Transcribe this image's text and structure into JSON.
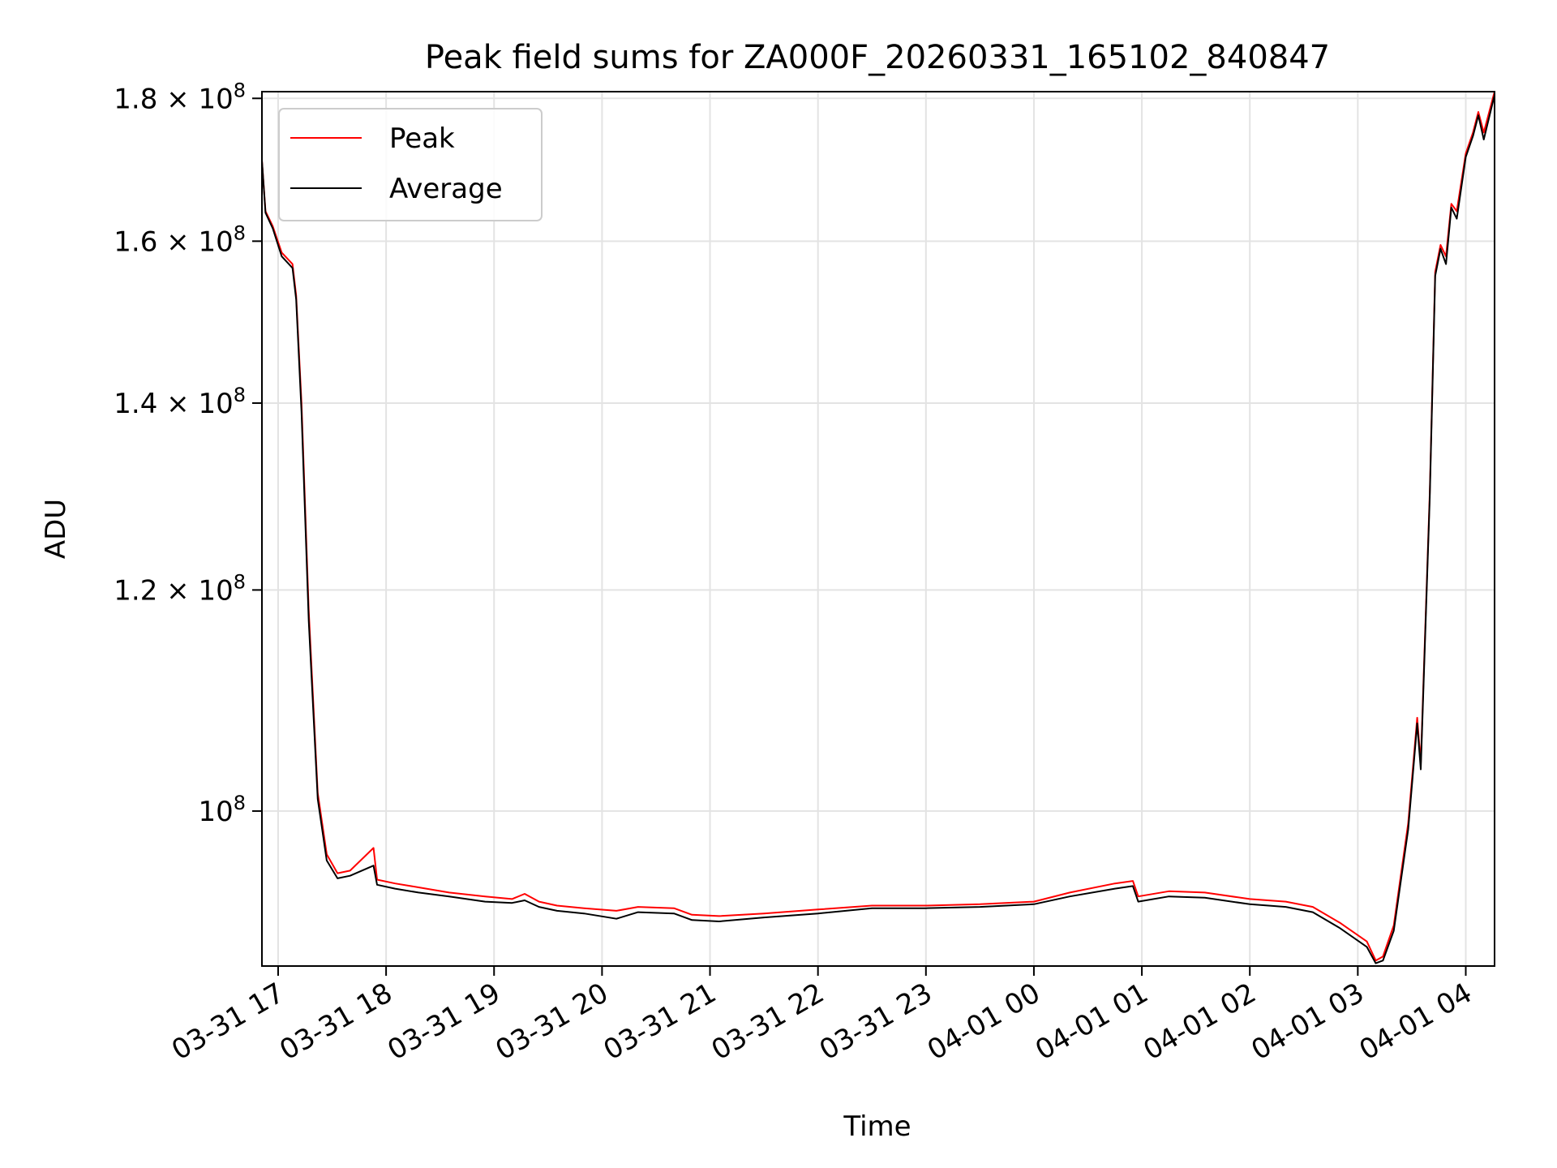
{
  "chart_data": {
    "type": "line",
    "title": "Peak field sums for ZA000F_20260331_165102_840847",
    "xlabel": "Time",
    "ylabel": "ADU",
    "y_scale": "log",
    "xlim": [
      "2026-03-31 16:51",
      "2026-04-01 04:16"
    ],
    "ylim": [
      88000000,
      181000000
    ],
    "x_ticks": [
      "03-31 17",
      "03-31 18",
      "03-31 19",
      "03-31 20",
      "03-31 21",
      "03-31 22",
      "03-31 23",
      "04-01 00",
      "04-01 01",
      "04-01 02",
      "04-01 03",
      "04-01 04"
    ],
    "x_tick_rotation_deg": 30,
    "y_ticks": [
      {
        "value": 100000000,
        "mantissa": "",
        "exponent": "8",
        "label": "10^8"
      },
      {
        "value": 120000000,
        "mantissa": "1.2",
        "exponent": "8",
        "label": "1.2×10^8"
      },
      {
        "value": 140000000,
        "mantissa": "1.4",
        "exponent": "8",
        "label": "1.4×10^8"
      },
      {
        "value": 160000000,
        "mantissa": "1.6",
        "exponent": "8",
        "label": "1.6×10^8"
      },
      {
        "value": 180000000,
        "mantissa": "1.8",
        "exponent": "8",
        "label": "1.8×10^8"
      }
    ],
    "grid": true,
    "legend_position": "top-left",
    "series": [
      {
        "name": "Peak",
        "color": "#ff0000",
        "points": [
          [
            "2026-03-31 16:51",
            171000000
          ],
          [
            "2026-03-31 16:53",
            164000000
          ],
          [
            "2026-03-31 16:57",
            162000000
          ],
          [
            "2026-03-31 17:02",
            158500000
          ],
          [
            "2026-03-31 17:08",
            157000000
          ],
          [
            "2026-03-31 17:10",
            153000000
          ],
          [
            "2026-03-31 17:13",
            140000000
          ],
          [
            "2026-03-31 17:17",
            118000000
          ],
          [
            "2026-03-31 17:22",
            101500000
          ],
          [
            "2026-03-31 17:27",
            96500000
          ],
          [
            "2026-03-31 17:33",
            95000000
          ],
          [
            "2026-03-31 17:40",
            95200000
          ],
          [
            "2026-03-31 17:53",
            97000000
          ],
          [
            "2026-03-31 17:55",
            94500000
          ],
          [
            "2026-03-31 18:05",
            94200000
          ],
          [
            "2026-03-31 18:18",
            93900000
          ],
          [
            "2026-03-31 18:35",
            93500000
          ],
          [
            "2026-03-31 18:55",
            93200000
          ],
          [
            "2026-03-31 19:10",
            93000000
          ],
          [
            "2026-03-31 19:17",
            93400000
          ],
          [
            "2026-03-31 19:25",
            92800000
          ],
          [
            "2026-03-31 19:35",
            92500000
          ],
          [
            "2026-03-31 19:50",
            92300000
          ],
          [
            "2026-03-31 20:08",
            92100000
          ],
          [
            "2026-03-31 20:20",
            92400000
          ],
          [
            "2026-03-31 20:40",
            92300000
          ],
          [
            "2026-03-31 20:50",
            91800000
          ],
          [
            "2026-03-31 21:05",
            91700000
          ],
          [
            "2026-03-31 21:30",
            91900000
          ],
          [
            "2026-03-31 22:00",
            92200000
          ],
          [
            "2026-03-31 22:30",
            92500000
          ],
          [
            "2026-03-31 23:00",
            92500000
          ],
          [
            "2026-03-31 23:30",
            92600000
          ],
          [
            "2026-04-01 00:00",
            92800000
          ],
          [
            "2026-04-01 00:20",
            93500000
          ],
          [
            "2026-04-01 00:45",
            94200000
          ],
          [
            "2026-04-01 00:55",
            94400000
          ],
          [
            "2026-04-01 00:58",
            93200000
          ],
          [
            "2026-04-01 01:15",
            93600000
          ],
          [
            "2026-04-01 01:35",
            93500000
          ],
          [
            "2026-04-01 02:00",
            93000000
          ],
          [
            "2026-04-01 02:20",
            92800000
          ],
          [
            "2026-04-01 02:35",
            92400000
          ],
          [
            "2026-04-01 02:50",
            91200000
          ],
          [
            "2026-04-01 03:05",
            89800000
          ],
          [
            "2026-04-01 03:10",
            88400000
          ],
          [
            "2026-04-01 03:14",
            88700000
          ],
          [
            "2026-04-01 03:20",
            91000000
          ],
          [
            "2026-04-01 03:28",
            99000000
          ],
          [
            "2026-04-01 03:33",
            108000000
          ],
          [
            "2026-04-01 03:35",
            104000000
          ],
          [
            "2026-04-01 03:40",
            130000000
          ],
          [
            "2026-04-01 03:43",
            156000000
          ],
          [
            "2026-04-01 03:46",
            159500000
          ],
          [
            "2026-04-01 03:49",
            158000000
          ],
          [
            "2026-04-01 03:52",
            165000000
          ],
          [
            "2026-04-01 03:55",
            164000000
          ],
          [
            "2026-04-01 04:00",
            172000000
          ],
          [
            "2026-04-01 04:04",
            175000000
          ],
          [
            "2026-04-01 04:07",
            178000000
          ],
          [
            "2026-04-01 04:10",
            175000000
          ],
          [
            "2026-04-01 04:16",
            181000000
          ]
        ]
      },
      {
        "name": "Average",
        "color": "#000000",
        "points": [
          [
            "2026-03-31 16:51",
            171000000
          ],
          [
            "2026-03-31 16:53",
            163800000
          ],
          [
            "2026-03-31 16:57",
            161700000
          ],
          [
            "2026-03-31 17:02",
            158000000
          ],
          [
            "2026-03-31 17:08",
            156500000
          ],
          [
            "2026-03-31 17:10",
            152500000
          ],
          [
            "2026-03-31 17:13",
            139000000
          ],
          [
            "2026-03-31 17:17",
            117000000
          ],
          [
            "2026-03-31 17:22",
            101000000
          ],
          [
            "2026-03-31 17:27",
            96000000
          ],
          [
            "2026-03-31 17:33",
            94600000
          ],
          [
            "2026-03-31 17:40",
            94800000
          ],
          [
            "2026-03-31 17:53",
            95600000
          ],
          [
            "2026-03-31 17:55",
            94100000
          ],
          [
            "2026-03-31 18:05",
            93800000
          ],
          [
            "2026-03-31 18:18",
            93500000
          ],
          [
            "2026-03-31 18:35",
            93200000
          ],
          [
            "2026-03-31 18:55",
            92800000
          ],
          [
            "2026-03-31 19:10",
            92700000
          ],
          [
            "2026-03-31 19:17",
            92900000
          ],
          [
            "2026-03-31 19:25",
            92400000
          ],
          [
            "2026-03-31 19:35",
            92100000
          ],
          [
            "2026-03-31 19:50",
            91900000
          ],
          [
            "2026-03-31 20:08",
            91500000
          ],
          [
            "2026-03-31 20:20",
            92000000
          ],
          [
            "2026-03-31 20:40",
            91900000
          ],
          [
            "2026-03-31 20:50",
            91400000
          ],
          [
            "2026-03-31 21:05",
            91300000
          ],
          [
            "2026-03-31 21:30",
            91600000
          ],
          [
            "2026-03-31 22:00",
            91900000
          ],
          [
            "2026-03-31 22:30",
            92300000
          ],
          [
            "2026-03-31 23:00",
            92300000
          ],
          [
            "2026-03-31 23:30",
            92400000
          ],
          [
            "2026-04-01 00:00",
            92600000
          ],
          [
            "2026-04-01 00:20",
            93200000
          ],
          [
            "2026-04-01 00:45",
            93800000
          ],
          [
            "2026-04-01 00:55",
            94000000
          ],
          [
            "2026-04-01 00:58",
            92800000
          ],
          [
            "2026-04-01 01:15",
            93200000
          ],
          [
            "2026-04-01 01:35",
            93100000
          ],
          [
            "2026-04-01 02:00",
            92600000
          ],
          [
            "2026-04-01 02:20",
            92400000
          ],
          [
            "2026-04-01 02:35",
            92000000
          ],
          [
            "2026-04-01 02:50",
            90800000
          ],
          [
            "2026-04-01 03:05",
            89400000
          ],
          [
            "2026-04-01 03:10",
            88200000
          ],
          [
            "2026-04-01 03:14",
            88400000
          ],
          [
            "2026-04-01 03:20",
            90600000
          ],
          [
            "2026-04-01 03:28",
            98500000
          ],
          [
            "2026-04-01 03:33",
            107500000
          ],
          [
            "2026-04-01 03:35",
            103500000
          ],
          [
            "2026-04-01 03:40",
            129500000
          ],
          [
            "2026-04-01 03:43",
            155500000
          ],
          [
            "2026-04-01 03:46",
            159000000
          ],
          [
            "2026-04-01 03:49",
            157000000
          ],
          [
            "2026-04-01 03:52",
            164500000
          ],
          [
            "2026-04-01 03:55",
            163000000
          ],
          [
            "2026-04-01 04:00",
            171500000
          ],
          [
            "2026-04-01 04:04",
            174500000
          ],
          [
            "2026-04-01 04:07",
            177500000
          ],
          [
            "2026-04-01 04:10",
            174000000
          ],
          [
            "2026-04-01 04:16",
            180500000
          ]
        ]
      }
    ]
  }
}
